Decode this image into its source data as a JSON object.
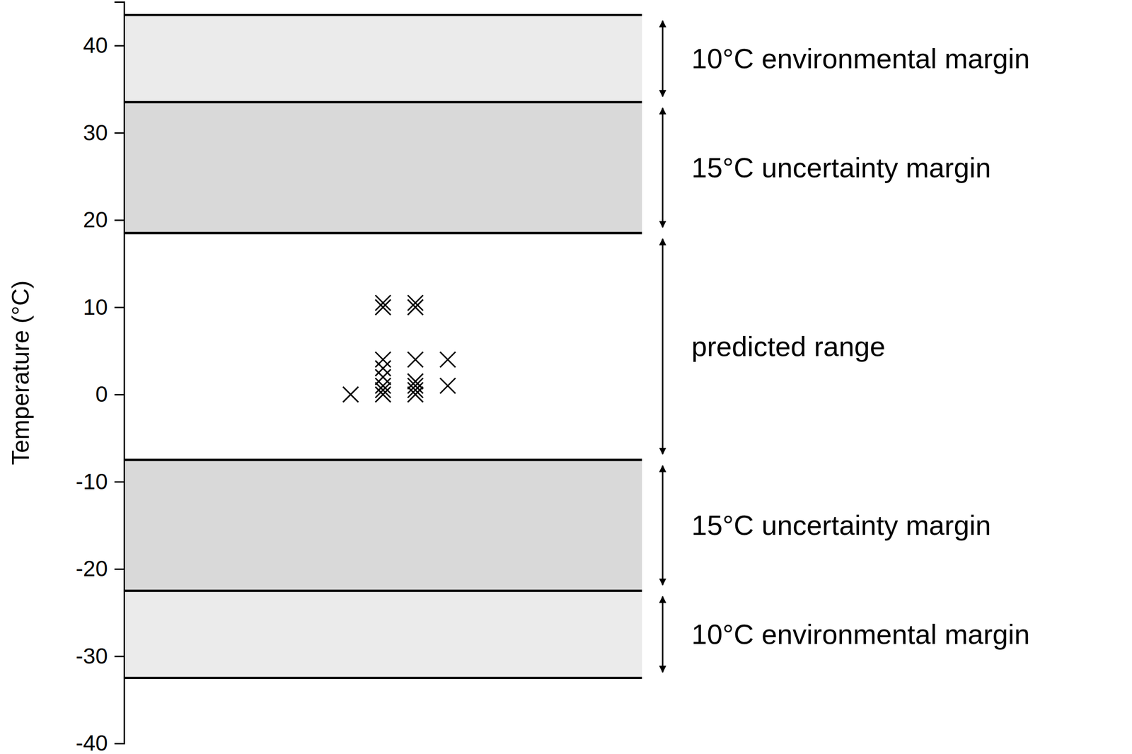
{
  "chart_data": {
    "type": "scatter",
    "y_label": "Temperature (°C)",
    "ylim": [
      -40,
      45
    ],
    "yticks": [
      -40,
      -30,
      -20,
      -10,
      0,
      10,
      20,
      30,
      40
    ],
    "xlim": [
      0,
      8
    ],
    "tick_labels": "y",
    "regions": [
      {
        "label": "10°C environmental margin",
        "from": 33.5,
        "to": 43.5,
        "color": "#ebebeb"
      },
      {
        "label": "15°C uncertainty margin",
        "from": 18.5,
        "to": 33.5,
        "color": "#d9d9d9"
      },
      {
        "label": "predicted range",
        "from": -7.5,
        "to": 18.5,
        "color": "#ffffff"
      },
      {
        "label": "15°C uncertainty margin",
        "from": -22.5,
        "to": -7.5,
        "color": "#d9d9d9"
      },
      {
        "label": "10°C environmental margin",
        "from": -32.5,
        "to": -22.5,
        "color": "#ebebeb"
      }
    ],
    "series": [
      {
        "color": "#000000",
        "marker": "x",
        "x": [
          3.5,
          4,
          4,
          4,
          4,
          4,
          4,
          4,
          4,
          4.5,
          4.5,
          4.5,
          4.5,
          4.5,
          4.5,
          4.5,
          5,
          5
        ],
        "values": [
          0,
          10.5,
          10,
          4,
          3,
          2,
          1,
          0.5,
          0,
          10.5,
          10,
          4,
          1.5,
          1,
          0.5,
          0,
          4,
          1
        ]
      }
    ]
  }
}
